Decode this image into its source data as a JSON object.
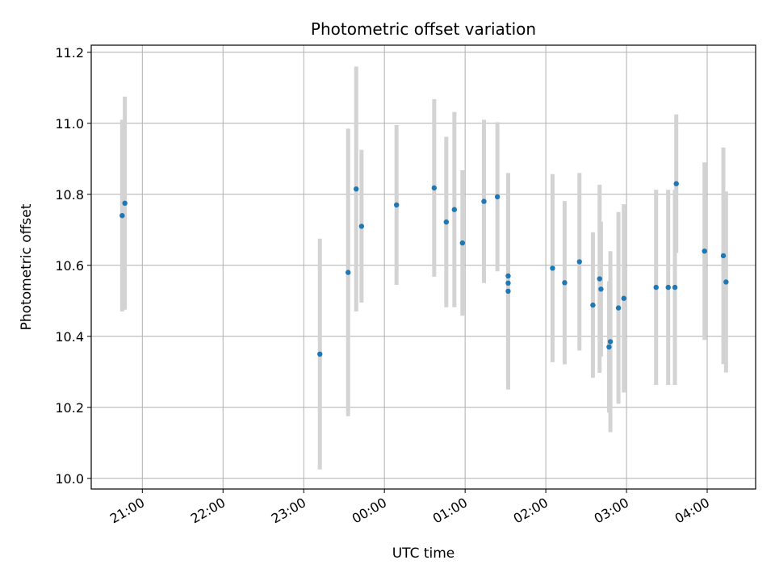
{
  "chart_data": {
    "type": "scatter",
    "title": "Photometric offset variation",
    "xlabel": "UTC time",
    "ylabel": "Photometric offset",
    "xlim": [
      "20:22",
      "04:36"
    ],
    "ylim": [
      9.97,
      11.22
    ],
    "x_ticks": [
      "21:00",
      "22:00",
      "23:00",
      "00:00",
      "01:00",
      "02:00",
      "03:00",
      "04:00"
    ],
    "y_ticks": [
      "10.0",
      "10.2",
      "10.4",
      "10.6",
      "10.8",
      "11.0",
      "11.2"
    ],
    "grid": true,
    "marker_color": "#1f77b4",
    "errorbar_color": "#d3d3d3",
    "series": [
      {
        "points": [
          {
            "x": "20:45",
            "y": 10.74,
            "err": 0.27
          },
          {
            "x": "20:47",
            "y": 10.775,
            "err": 0.3
          },
          {
            "x": "23:12",
            "y": 10.35,
            "err": 0.325
          },
          {
            "x": "23:33",
            "y": 10.58,
            "err": 0.405
          },
          {
            "x": "23:39",
            "y": 10.815,
            "err": 0.345
          },
          {
            "x": "23:43",
            "y": 10.71,
            "err": 0.215
          },
          {
            "x": "00:09",
            "y": 10.77,
            "err": 0.225
          },
          {
            "x": "00:37",
            "y": 10.818,
            "err": 0.25
          },
          {
            "x": "00:46",
            "y": 10.722,
            "err": 0.24
          },
          {
            "x": "00:52",
            "y": 10.757,
            "err": 0.275
          },
          {
            "x": "00:58",
            "y": 10.663,
            "err": 0.205
          },
          {
            "x": "01:14",
            "y": 10.78,
            "err": 0.23
          },
          {
            "x": "01:24",
            "y": 10.793,
            "err": 0.21
          },
          {
            "x": "01:32",
            "y": 10.57,
            "err": 0.29
          },
          {
            "x": "01:32",
            "y": 10.55,
            "err": 0.3
          },
          {
            "x": "01:32",
            "y": 10.527,
            "err": 0.275
          },
          {
            "x": "02:05",
            "y": 10.592,
            "err": 0.265
          },
          {
            "x": "02:14",
            "y": 10.551,
            "err": 0.23
          },
          {
            "x": "02:25",
            "y": 10.61,
            "err": 0.25
          },
          {
            "x": "02:35",
            "y": 10.488,
            "err": 0.205
          },
          {
            "x": "02:40",
            "y": 10.562,
            "err": 0.265
          },
          {
            "x": "02:41",
            "y": 10.533,
            "err": 0.19
          },
          {
            "x": "02:47",
            "y": 10.37,
            "err": 0.185
          },
          {
            "x": "02:48",
            "y": 10.385,
            "err": 0.255
          },
          {
            "x": "02:54",
            "y": 10.48,
            "err": 0.27
          },
          {
            "x": "02:58",
            "y": 10.507,
            "err": 0.265
          },
          {
            "x": "03:22",
            "y": 10.538,
            "err": 0.275
          },
          {
            "x": "03:31",
            "y": 10.538,
            "err": 0.275
          },
          {
            "x": "03:36",
            "y": 10.538,
            "err": 0.275
          },
          {
            "x": "03:37",
            "y": 10.83,
            "err": 0.195
          },
          {
            "x": "03:58",
            "y": 10.64,
            "err": 0.25
          },
          {
            "x": "04:12",
            "y": 10.627,
            "err": 0.305
          },
          {
            "x": "04:14",
            "y": 10.553,
            "err": 0.255
          }
        ]
      }
    ]
  }
}
